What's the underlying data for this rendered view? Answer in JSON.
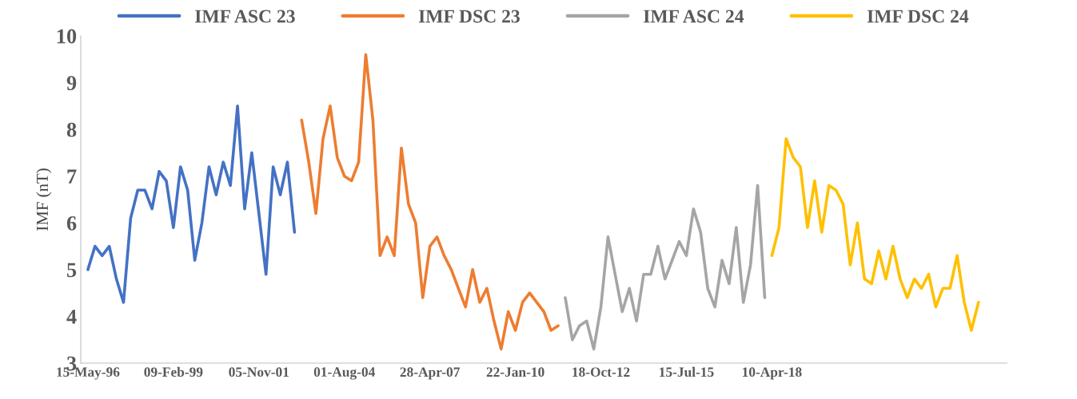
{
  "chart_data": {
    "type": "line",
    "ylabel": "IMF (nT)",
    "categories": [
      "15-May-96",
      null,
      null,
      null,
      null,
      null,
      null,
      null,
      null,
      null,
      null,
      null,
      "09-Feb-99",
      null,
      null,
      null,
      null,
      null,
      null,
      null,
      null,
      null,
      null,
      null,
      "05-Nov-01",
      null,
      null,
      null,
      null,
      null,
      null,
      null,
      null,
      null,
      null,
      null,
      "01-Aug-04",
      null,
      null,
      null,
      null,
      null,
      null,
      null,
      null,
      null,
      null,
      null,
      "28-Apr-07",
      null,
      null,
      null,
      null,
      null,
      null,
      null,
      null,
      null,
      null,
      null,
      "22-Jan-10",
      null,
      null,
      null,
      null,
      null,
      null,
      null,
      null,
      null,
      null,
      null,
      "18-Oct-12",
      null,
      null,
      null,
      null,
      null,
      null,
      null,
      null,
      null,
      null,
      null,
      "15-Jul-15",
      null,
      null,
      null,
      null,
      null,
      null,
      null,
      null,
      null,
      null,
      null,
      "10-Apr-18",
      null,
      null,
      null,
      null,
      null,
      null,
      null,
      null,
      null,
      null,
      null,
      null,
      null,
      null,
      null,
      null,
      null,
      null,
      null,
      null,
      null,
      null,
      null,
      null,
      null,
      null,
      null,
      null,
      null
    ],
    "series": [
      {
        "name": "IMF ASC 23",
        "color": "#4472c4",
        "values": [
          5.0,
          5.5,
          5.3,
          5.5,
          4.8,
          4.3,
          6.1,
          6.7,
          6.7,
          6.3,
          7.1,
          6.9,
          5.9,
          7.2,
          6.7,
          5.2,
          6.0,
          7.2,
          6.6,
          7.3,
          6.8,
          8.5,
          6.3,
          7.5,
          6.2,
          4.9,
          7.2,
          6.6,
          7.3,
          5.8,
          null,
          null,
          null,
          null,
          null,
          null,
          null,
          null,
          null,
          null,
          null,
          null,
          null,
          null,
          null,
          null,
          null,
          null,
          null,
          null,
          null,
          null,
          null,
          null,
          null,
          null,
          null,
          null,
          null,
          null,
          null,
          null,
          null,
          null,
          null,
          null,
          null,
          null,
          null,
          null,
          null,
          null,
          null,
          null,
          null,
          null,
          null,
          null,
          null,
          null,
          null,
          null,
          null,
          null,
          null,
          null,
          null,
          null,
          null,
          null,
          null,
          null,
          null,
          null,
          null,
          null,
          null,
          null,
          null,
          null,
          null,
          null,
          null,
          null,
          null,
          null,
          null,
          null,
          null,
          null,
          null,
          null,
          null,
          null,
          null,
          null,
          null,
          null,
          null,
          null,
          null,
          null,
          null,
          null,
          null,
          null
        ]
      },
      {
        "name": "IMF DSC 23",
        "color": "#ed7d31",
        "values": [
          null,
          null,
          null,
          null,
          null,
          null,
          null,
          null,
          null,
          null,
          null,
          null,
          null,
          null,
          null,
          null,
          null,
          null,
          null,
          null,
          null,
          null,
          null,
          null,
          null,
          null,
          null,
          null,
          null,
          null,
          8.2,
          7.3,
          6.2,
          7.8,
          8.5,
          7.4,
          7.0,
          6.9,
          7.3,
          9.6,
          8.2,
          5.3,
          5.7,
          5.3,
          7.6,
          6.4,
          6.0,
          4.4,
          5.5,
          5.7,
          5.3,
          5.0,
          4.6,
          4.2,
          5.0,
          4.3,
          4.6,
          3.9,
          3.3,
          4.1,
          3.7,
          4.3,
          4.5,
          4.3,
          4.1,
          3.7,
          3.8,
          null,
          null,
          null,
          null,
          null,
          null,
          null,
          null,
          null,
          null,
          null,
          null,
          null,
          null,
          null,
          null,
          null,
          null,
          null,
          null,
          null,
          null,
          null,
          null,
          null,
          null,
          null,
          null,
          null,
          null,
          null,
          null,
          null,
          null,
          null,
          null,
          null,
          null,
          null,
          null,
          null,
          null,
          null,
          null,
          null,
          null,
          null,
          null,
          null,
          null,
          null,
          null,
          null,
          null,
          null,
          null,
          null,
          null,
          null
        ]
      },
      {
        "name": "IMF ASC 24",
        "color": "#a5a5a5",
        "values": [
          null,
          null,
          null,
          null,
          null,
          null,
          null,
          null,
          null,
          null,
          null,
          null,
          null,
          null,
          null,
          null,
          null,
          null,
          null,
          null,
          null,
          null,
          null,
          null,
          null,
          null,
          null,
          null,
          null,
          null,
          null,
          null,
          null,
          null,
          null,
          null,
          null,
          null,
          null,
          null,
          null,
          null,
          null,
          null,
          null,
          null,
          null,
          null,
          null,
          null,
          null,
          null,
          null,
          null,
          null,
          null,
          null,
          null,
          null,
          null,
          null,
          null,
          null,
          null,
          null,
          null,
          null,
          4.4,
          3.5,
          3.8,
          3.9,
          3.3,
          4.2,
          5.7,
          4.9,
          4.1,
          4.6,
          3.9,
          4.9,
          4.9,
          5.5,
          4.8,
          5.2,
          5.6,
          5.3,
          6.3,
          5.8,
          4.6,
          4.2,
          5.2,
          4.7,
          5.9,
          4.3,
          5.1,
          6.8,
          4.4,
          null,
          null,
          null,
          null,
          null,
          null,
          null,
          null,
          null,
          null,
          null,
          null,
          null,
          null,
          null,
          null,
          null,
          null,
          null,
          null,
          null,
          null,
          null,
          null,
          null,
          null,
          null,
          null,
          null,
          null
        ]
      },
      {
        "name": "IMF DSC 24",
        "color": "#ffc000",
        "values": [
          null,
          null,
          null,
          null,
          null,
          null,
          null,
          null,
          null,
          null,
          null,
          null,
          null,
          null,
          null,
          null,
          null,
          null,
          null,
          null,
          null,
          null,
          null,
          null,
          null,
          null,
          null,
          null,
          null,
          null,
          null,
          null,
          null,
          null,
          null,
          null,
          null,
          null,
          null,
          null,
          null,
          null,
          null,
          null,
          null,
          null,
          null,
          null,
          null,
          null,
          null,
          null,
          null,
          null,
          null,
          null,
          null,
          null,
          null,
          null,
          null,
          null,
          null,
          null,
          null,
          null,
          null,
          null,
          null,
          null,
          null,
          null,
          null,
          null,
          null,
          null,
          null,
          null,
          null,
          null,
          null,
          null,
          null,
          null,
          null,
          null,
          null,
          null,
          null,
          null,
          null,
          null,
          null,
          null,
          null,
          null,
          5.3,
          5.9,
          7.8,
          7.4,
          7.2,
          5.9,
          6.9,
          5.8,
          6.8,
          6.7,
          6.4,
          5.1,
          6.0,
          4.8,
          4.7,
          5.4,
          4.8,
          5.5,
          4.8,
          4.4,
          4.8,
          4.6,
          4.9,
          4.2,
          4.6,
          4.6,
          5.3,
          4.3,
          3.7,
          4.3
        ]
      }
    ],
    "ylim": [
      3,
      10
    ],
    "yticks": [
      3,
      4,
      5,
      6,
      7,
      8,
      9,
      10
    ],
    "grid": false,
    "legend": "top",
    "marker": "none",
    "line_style": "solid"
  }
}
